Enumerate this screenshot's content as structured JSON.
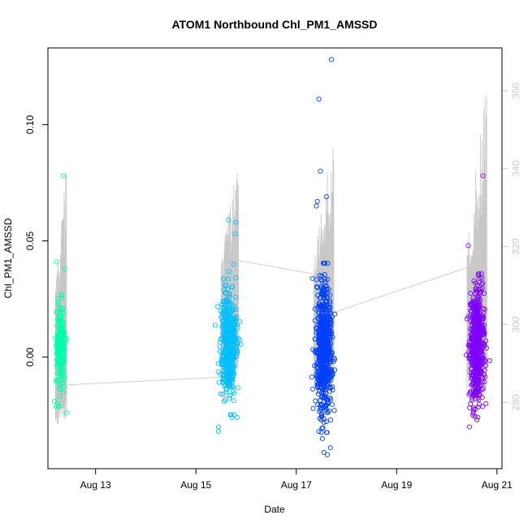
{
  "chart_data": {
    "type": "scatter",
    "title": "ATOM1 Northbound Chl_PM1_AMSSD",
    "xlabel": "Date",
    "ylabel": "Chl_PM1_AMSSD",
    "x_ticks": [
      "Aug 13",
      "Aug 15",
      "Aug 17",
      "Aug 19",
      "Aug 21"
    ],
    "x_tick_days": [
      13,
      15,
      17,
      19,
      21
    ],
    "xlim_days": [
      12.05,
      21.1
    ],
    "ylim": [
      -0.048,
      0.133
    ],
    "y_ticks": [
      0.0,
      0.05,
      0.1
    ],
    "y_tick_labels": [
      "0.00",
      "0.05",
      "0.10"
    ],
    "y2_label": "",
    "y2_lim": [
      263,
      371
    ],
    "y2_ticks": [
      280,
      300,
      320,
      340,
      360
    ],
    "y2_tick_labels": [
      "280",
      "300",
      "320",
      "340",
      "360"
    ],
    "y2_series_color": "#c8c8c8",
    "clusters": [
      {
        "center_day": 12.3,
        "spread_day": 0.1,
        "count": 240,
        "color": "#00ffaa",
        "median": 0.004,
        "sd": 0.009,
        "outliers": [
          [
            12.22,
            0.041
          ],
          [
            12.38,
            0.038
          ],
          [
            12.36,
            0.078
          ],
          [
            12.32,
            0.027
          ],
          [
            12.18,
            -0.019
          ],
          [
            12.42,
            -0.024
          ],
          [
            12.25,
            -0.02
          ]
        ]
      },
      {
        "center_day": 15.65,
        "spread_day": 0.17,
        "count": 520,
        "color": "#00bfff",
        "median": 0.006,
        "sd": 0.011,
        "outliers": [
          [
            15.65,
            0.059
          ],
          [
            15.8,
            0.058
          ],
          [
            15.78,
            0.053
          ],
          [
            15.45,
            -0.03
          ],
          [
            15.45,
            -0.032
          ],
          [
            15.72,
            -0.026
          ],
          [
            15.82,
            -0.026
          ],
          [
            15.75,
            0.04
          ]
        ]
      },
      {
        "center_day": 17.55,
        "spread_day": 0.18,
        "count": 700,
        "color": "#0040ff",
        "median": 0.004,
        "sd": 0.013,
        "outliers": [
          [
            17.7,
            0.128
          ],
          [
            17.45,
            0.111
          ],
          [
            17.42,
            0.067
          ],
          [
            17.48,
            0.08
          ],
          [
            17.5,
            -0.027
          ],
          [
            17.45,
            -0.032
          ],
          [
            17.52,
            -0.035
          ],
          [
            17.55,
            -0.041
          ],
          [
            17.62,
            -0.042
          ],
          [
            17.68,
            -0.039
          ],
          [
            17.4,
            0.065
          ],
          [
            17.6,
            0.069
          ]
        ]
      },
      {
        "center_day": 20.6,
        "spread_day": 0.16,
        "count": 620,
        "color": "#7f00ff",
        "median": 0.005,
        "sd": 0.011,
        "outliers": [
          [
            20.72,
            0.078
          ],
          [
            20.43,
            0.048
          ],
          [
            20.45,
            -0.03
          ],
          [
            20.6,
            -0.027
          ],
          [
            20.52,
            -0.025
          ],
          [
            20.78,
            -0.02
          ],
          [
            20.7,
            0.034
          ]
        ]
      }
    ],
    "y2_line_path": [
      [
        12.38,
        284.5
      ],
      [
        15.5,
        286.5
      ],
      [
        15.82,
        316.5
      ],
      [
        17.55,
        312.5
      ],
      [
        17.72,
        303
      ],
      [
        20.5,
        315
      ]
    ],
    "y2_spike_bursts": [
      {
        "from_day": 12.2,
        "to_day": 12.42,
        "base": 290,
        "max": 343
      },
      {
        "from_day": 15.5,
        "to_day": 15.85,
        "base": 300,
        "max": 346
      },
      {
        "from_day": 17.35,
        "to_day": 17.75,
        "base": 300,
        "max": 350
      },
      {
        "from_day": 20.4,
        "to_day": 20.8,
        "base": 298,
        "max": 364
      }
    ]
  }
}
